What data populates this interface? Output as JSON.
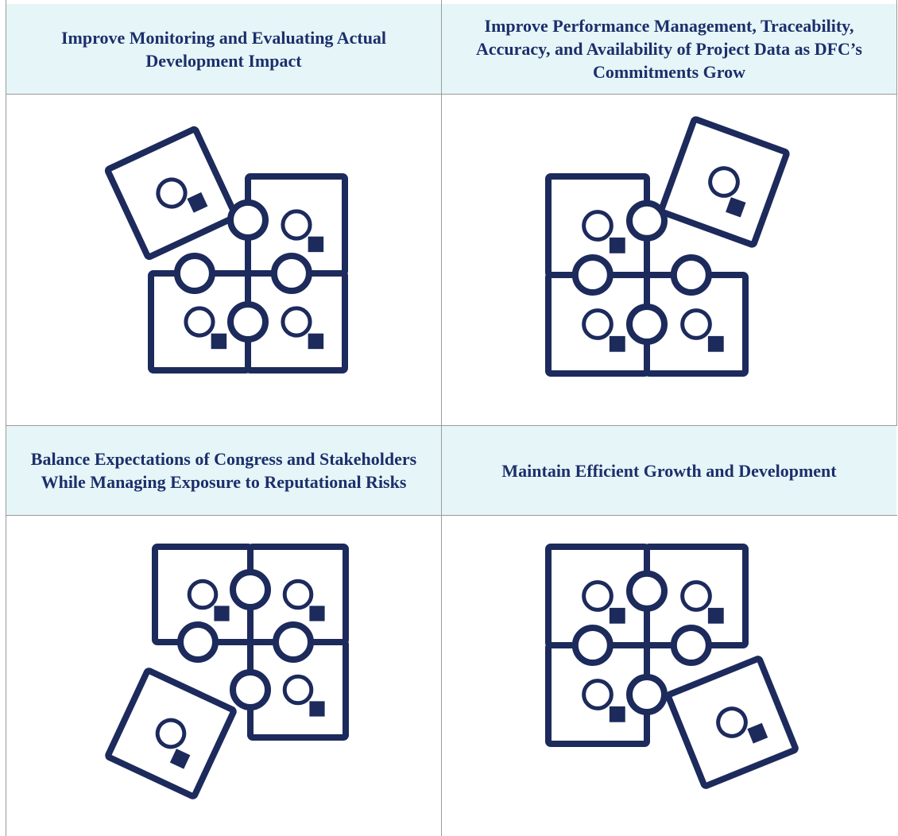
{
  "table": {
    "rows": [
      [
        "Improve Monitoring and Evaluating Actual Development Impact",
        "Improve Performance Management, Traceability, Accuracy, and Availability of Project Data as DFC’s Commitments Grow"
      ],
      [
        "Balance Expectations of Congress and Stakeholders While Managing Exposure to Reputational Risks",
        "Maintain Efficient Growth and Development"
      ]
    ]
  }
}
